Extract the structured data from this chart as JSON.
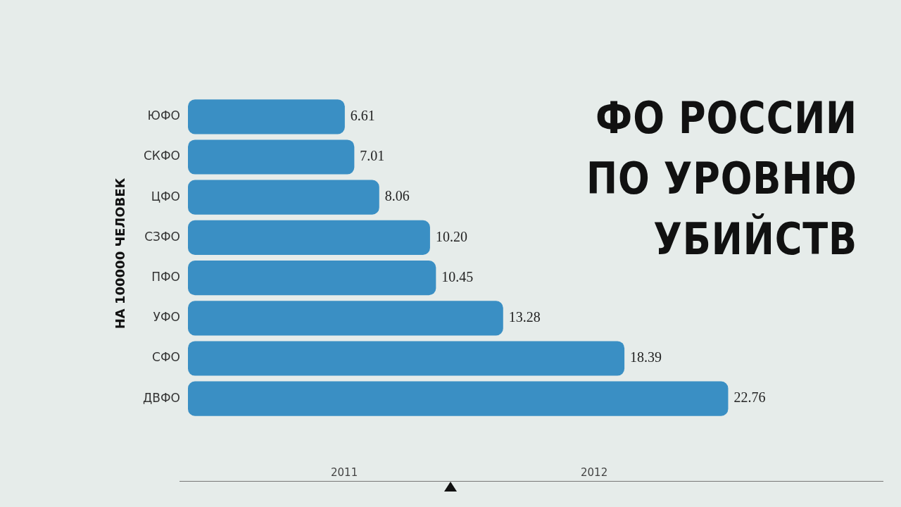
{
  "chart_data": {
    "type": "bar",
    "orientation": "horizontal",
    "title": "ФО РОССИИ ПО УРОВНЮ УБИЙСТВ",
    "ylabel": "НА 100000 ЧЕЛОВЕК",
    "categories": [
      "ЮФО",
      "СКФО",
      "ЦФО",
      "СЗФО",
      "ПФО",
      "УФО",
      "СФО",
      "ДВФО"
    ],
    "values": [
      6.61,
      7.01,
      8.06,
      10.2,
      10.45,
      13.28,
      18.39,
      22.76
    ],
    "value_labels": [
      "6.61",
      "7.01",
      "8.06",
      "10.20",
      "10.45",
      "13.28",
      "18.39",
      "22.76"
    ],
    "color": "#3a8fc4",
    "tick_labels": "y",
    "legend": false,
    "annotations": [
      "2011",
      "2012"
    ]
  }
}
